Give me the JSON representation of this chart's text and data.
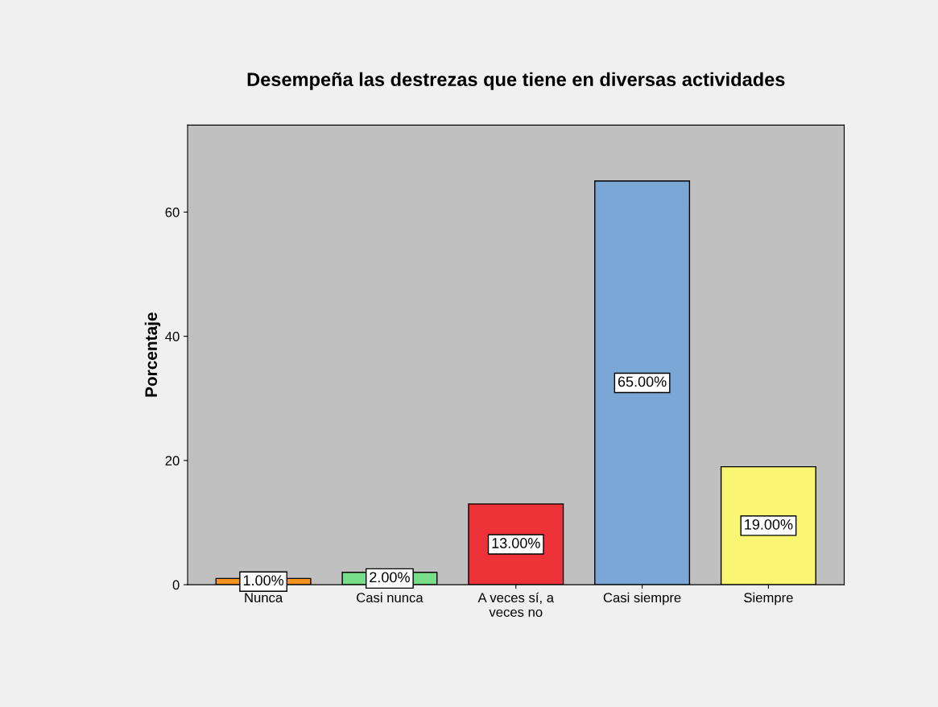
{
  "chart_data": {
    "type": "bar",
    "title": "Desempeña las destrezas que tiene en diversas actividades",
    "ylabel": "Porcentaje",
    "categories": [
      "Nunca",
      "Casi nunca",
      "A veces sí, a\nveces no",
      "Casi siempre",
      "Siempre"
    ],
    "values": [
      1,
      2,
      13,
      65,
      19
    ],
    "colors": [
      "#f7941d",
      "#77dd88",
      "#ee3338",
      "#7aa7d6",
      "#faf573"
    ],
    "value_labels": [
      "1.00%",
      "2.00%",
      "13.00%",
      "65.00%",
      "19.00%"
    ],
    "ylim": [
      0,
      74
    ],
    "yticks": [
      0,
      20,
      40,
      60
    ],
    "grid": false,
    "legend": false
  }
}
